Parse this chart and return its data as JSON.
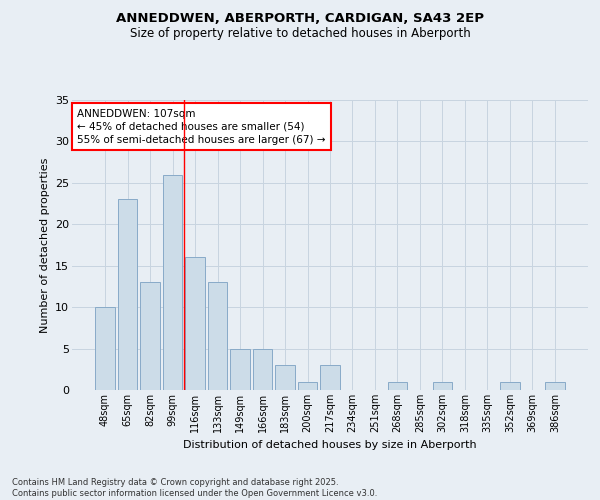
{
  "title_line1": "ANNEDDWEN, ABERPORTH, CARDIGAN, SA43 2EP",
  "title_line2": "Size of property relative to detached houses in Aberporth",
  "xlabel": "Distribution of detached houses by size in Aberporth",
  "ylabel": "Number of detached properties",
  "categories": [
    "48sqm",
    "65sqm",
    "82sqm",
    "99sqm",
    "116sqm",
    "133sqm",
    "149sqm",
    "166sqm",
    "183sqm",
    "200sqm",
    "217sqm",
    "234sqm",
    "251sqm",
    "268sqm",
    "285sqm",
    "302sqm",
    "318sqm",
    "335sqm",
    "352sqm",
    "369sqm",
    "386sqm"
  ],
  "values": [
    10,
    23,
    13,
    26,
    16,
    13,
    5,
    5,
    3,
    1,
    3,
    0,
    0,
    1,
    0,
    1,
    0,
    0,
    1,
    0,
    1
  ],
  "bar_color": "#ccdce8",
  "bar_edge_color": "#88aac8",
  "grid_color": "#c8d4e0",
  "bg_color": "#e8eef4",
  "annotation_box_text": "ANNEDDWEN: 107sqm\n← 45% of detached houses are smaller (54)\n55% of semi-detached houses are larger (67) →",
  "annotation_box_color": "white",
  "annotation_box_edge_color": "red",
  "vline_x_index": 3.5,
  "vline_color": "red",
  "ylim": [
    0,
    35
  ],
  "yticks": [
    0,
    5,
    10,
    15,
    20,
    25,
    30,
    35
  ],
  "footnote": "Contains HM Land Registry data © Crown copyright and database right 2025.\nContains public sector information licensed under the Open Government Licence v3.0.",
  "figsize": [
    6.0,
    5.0
  ],
  "dpi": 100
}
